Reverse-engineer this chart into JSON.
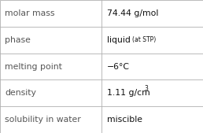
{
  "rows": [
    {
      "label": "molar mass",
      "value": "74.44 g/mol",
      "value_suffix": null,
      "superscript": null
    },
    {
      "label": "phase",
      "value": "liquid",
      "value_suffix": "(at STP)",
      "superscript": null
    },
    {
      "label": "melting point",
      "value": "−6°C",
      "value_suffix": null,
      "superscript": null
    },
    {
      "label": "density",
      "value": "1.11 g/cm",
      "value_suffix": null,
      "superscript": "3"
    },
    {
      "label": "solubility in water",
      "value": "miscible",
      "value_suffix": null,
      "superscript": null
    }
  ],
  "col_split": 0.5,
  "background_color": "#ffffff",
  "border_color": "#b0b0b0",
  "label_fontsize": 7.8,
  "value_fontsize": 7.8,
  "suffix_fontsize": 5.5,
  "sup_fontsize": 5.5,
  "label_color": "#555555",
  "value_color": "#111111",
  "label_font": "DejaVu Sans",
  "value_font": "DejaVu Sans"
}
